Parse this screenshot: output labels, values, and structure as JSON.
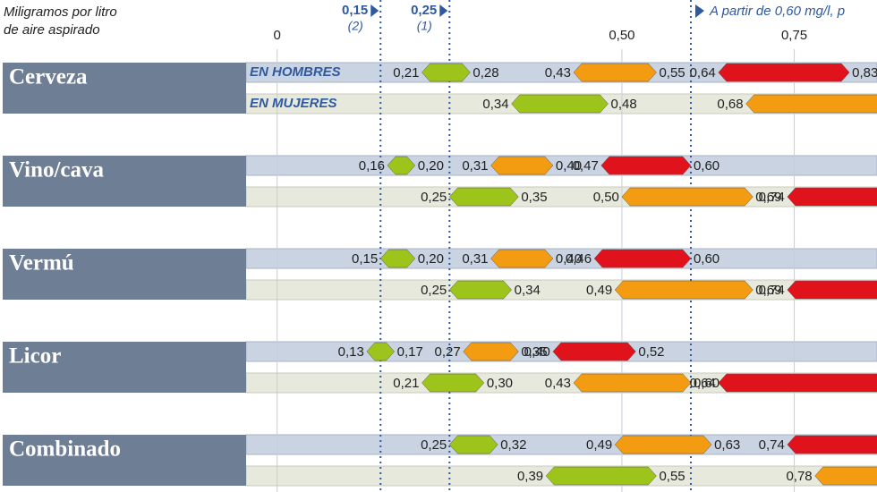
{
  "chart_data": {
    "type": "range-arrows",
    "title_lines": [
      "Miligramos por litro",
      "de aire aspirado"
    ],
    "xlim": [
      -0.045,
      0.87
    ],
    "xticks": [
      0,
      {
        "value": 0.5,
        "label": "0,50"
      },
      {
        "value": 0.75,
        "label": "0,75"
      }
    ],
    "thresholds": [
      {
        "value": 0.15,
        "label": "0,15",
        "note": "(2)"
      },
      {
        "value": 0.25,
        "label": "0,25",
        "note": "(1)"
      },
      {
        "value": 0.6,
        "label": "A partir de 0,60 mg/l, p"
      }
    ],
    "row_labels": [
      "EN HOMBRES",
      "EN MUJERES"
    ],
    "colors": {
      "green": "#9dc41a",
      "orange": "#f39c12",
      "red": "#e0121c"
    },
    "drinks": [
      {
        "name": "Cerveza",
        "rows": [
          [
            {
              "level": "green",
              "from": 0.21,
              "to": 0.28,
              "from_label": "0,21",
              "to_label": "0,28"
            },
            {
              "level": "orange",
              "from": 0.43,
              "to": 0.55,
              "from_label": "0,43",
              "to_label": "0,55"
            },
            {
              "level": "red",
              "from": 0.64,
              "to": 0.83,
              "from_label": "0,64",
              "to_label": "0,83"
            }
          ],
          [
            {
              "level": "green",
              "from": 0.34,
              "to": 0.48,
              "from_label": "0,34",
              "to_label": "0,48"
            },
            {
              "level": "orange",
              "from": 0.68,
              "to": null,
              "from_label": "0,68"
            }
          ]
        ]
      },
      {
        "name": "Vino/cava",
        "rows": [
          [
            {
              "level": "green",
              "from": 0.16,
              "to": 0.2,
              "from_label": "0,16",
              "to_label": "0,20"
            },
            {
              "level": "orange",
              "from": 0.31,
              "to": 0.4,
              "from_label": "0,31",
              "to_label": "0,40"
            },
            {
              "level": "red",
              "from": 0.47,
              "to": 0.6,
              "from_label": "0,47",
              "to_label": "0,60"
            }
          ],
          [
            {
              "level": "green",
              "from": 0.25,
              "to": 0.35,
              "from_label": "0,25",
              "to_label": "0,35"
            },
            {
              "level": "orange",
              "from": 0.5,
              "to": 0.69,
              "from_label": "0,50",
              "to_label": "0,69"
            },
            {
              "level": "red",
              "from": 0.74,
              "to": null,
              "from_label": "0,74"
            }
          ]
        ]
      },
      {
        "name": "Vermú",
        "rows": [
          [
            {
              "level": "green",
              "from": 0.15,
              "to": 0.2,
              "from_label": "0,15",
              "to_label": "0,20"
            },
            {
              "level": "orange",
              "from": 0.31,
              "to": 0.4,
              "from_label": "0,31",
              "to_label": "0,40"
            },
            {
              "level": "red",
              "from": 0.46,
              "to": 0.6,
              "from_label": "0,46",
              "to_label": "0,60"
            }
          ],
          [
            {
              "level": "green",
              "from": 0.25,
              "to": 0.34,
              "from_label": "0,25",
              "to_label": "0,34"
            },
            {
              "level": "orange",
              "from": 0.49,
              "to": 0.69,
              "from_label": "0,49",
              "to_label": "0,69"
            },
            {
              "level": "red",
              "from": 0.74,
              "to": null,
              "from_label": "0,74"
            }
          ]
        ]
      },
      {
        "name": "Licor",
        "rows": [
          [
            {
              "level": "green",
              "from": 0.13,
              "to": 0.17,
              "from_label": "0,13",
              "to_label": "0,17"
            },
            {
              "level": "orange",
              "from": 0.27,
              "to": 0.35,
              "from_label": "0,27",
              "to_label": "0,35"
            },
            {
              "level": "red",
              "from": 0.4,
              "to": 0.52,
              "from_label": "0,40",
              "to_label": "0,52"
            }
          ],
          [
            {
              "level": "green",
              "from": 0.21,
              "to": 0.3,
              "from_label": "0,21",
              "to_label": "0,30"
            },
            {
              "level": "orange",
              "from": 0.43,
              "to": 0.6,
              "from_label": "0,43",
              "to_label": "0,60"
            },
            {
              "level": "red",
              "from": 0.64,
              "to": null,
              "from_label": "0,64"
            }
          ]
        ]
      },
      {
        "name": "Combinado",
        "rows": [
          [
            {
              "level": "green",
              "from": 0.25,
              "to": 0.32,
              "from_label": "0,25",
              "to_label": "0,32"
            },
            {
              "level": "orange",
              "from": 0.49,
              "to": 0.63,
              "from_label": "0,49",
              "to_label": "0,63"
            },
            {
              "level": "red",
              "from": 0.74,
              "to": null,
              "from_label": "0,74"
            }
          ],
          [
            {
              "level": "green",
              "from": 0.39,
              "to": 0.55,
              "from_label": "0,39",
              "to_label": "0,55"
            },
            {
              "level": "orange",
              "from": 0.78,
              "to": null,
              "from_label": "0,78"
            }
          ]
        ]
      }
    ]
  }
}
